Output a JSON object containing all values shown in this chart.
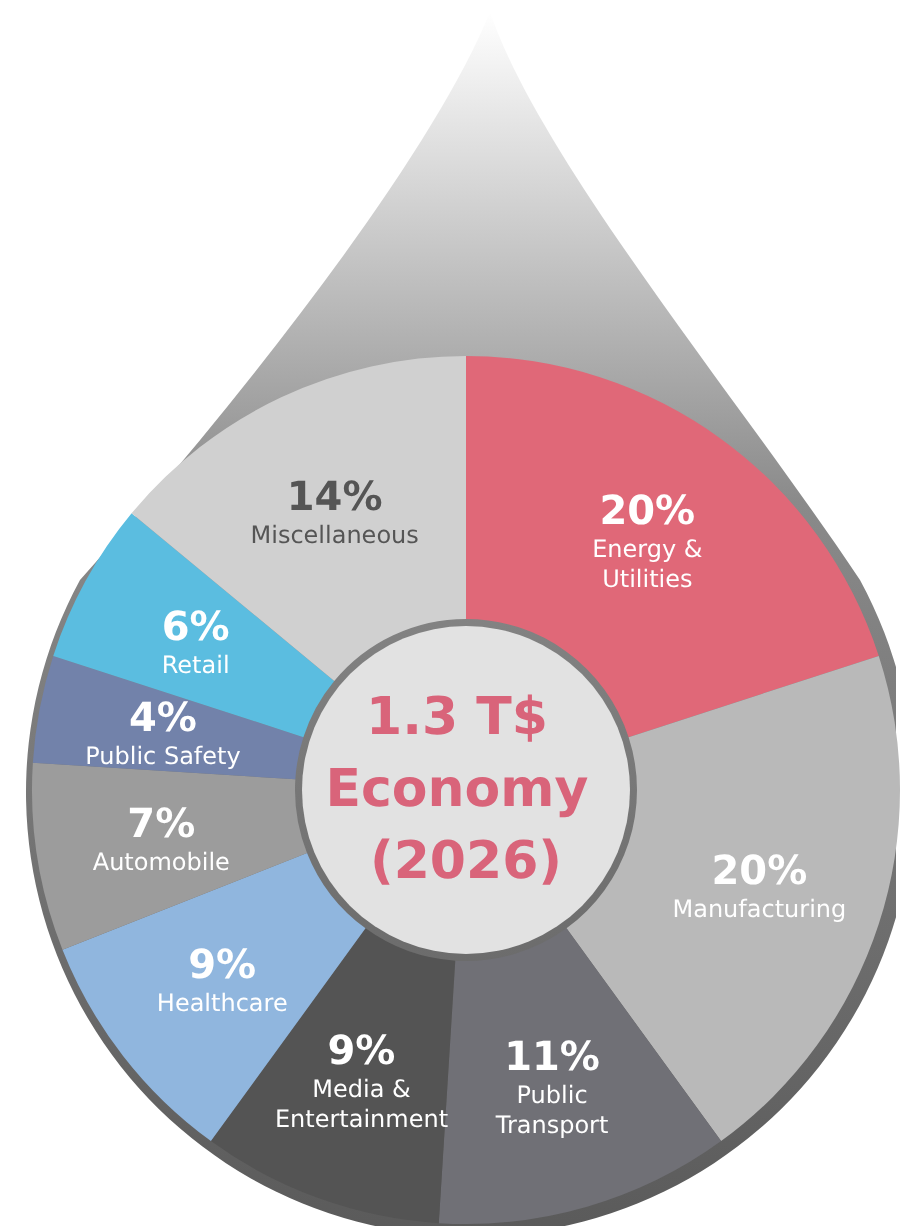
{
  "chart_data": {
    "type": "donut",
    "title": "1.3 T$ Economy (2026)",
    "categories": [
      "Energy & Utilities",
      "Manufacturing",
      "Public Transport",
      "Media & Entertainment",
      "Healthcare",
      "Automobile",
      "Public Safety",
      "Retail",
      "Miscellaneous"
    ],
    "values": [
      20,
      20,
      11,
      9,
      9,
      7,
      4,
      6,
      14
    ],
    "value_labels": [
      "20%",
      "20%",
      "11%",
      "9%",
      "9%",
      "7%",
      "4%",
      "6%",
      "14%"
    ],
    "colors": [
      "#e06878",
      "#b9b9b9",
      "#707076",
      "#545454",
      "#90b6de",
      "#9c9c9c",
      "#7282aa",
      "#5bbde0",
      "#d0d0d0"
    ],
    "legend": false
  }
}
